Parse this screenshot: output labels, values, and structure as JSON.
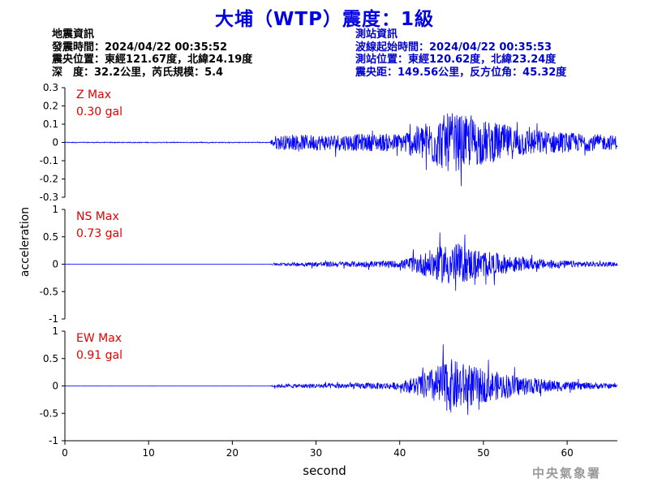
{
  "title": "大埔（WTP）震度：1級",
  "quake_info": {
    "heading": "地震資訊",
    "time": "發震時間：2024/04/22 00:35:52",
    "epicenter": "震央位置：東經121.67度，北緯24.19度",
    "depth_mag": "深　度：32.2公里，芮氏規模：5.4"
  },
  "station_info": {
    "heading": "測站資訊",
    "arrival": "波線起始時間：2024/04/22 00:35:53",
    "location": "測站位置：東經120.62度，北緯23.24度",
    "distance": "震央距：149.56公里，反方位角：45.32度"
  },
  "credit": "中央氣象署",
  "colors": {
    "title": "#0000e0",
    "trace": "#0000ff",
    "max_label": "#e00000",
    "station_text": "#0000cc"
  },
  "chart_data": {
    "type": "line",
    "xlabel": "second",
    "ylabel": "acceleration",
    "xlim": [
      0,
      66
    ],
    "x_ticks": [
      "0",
      "10",
      "20",
      "30",
      "40",
      "50",
      "60"
    ],
    "panels": [
      {
        "component": "Z",
        "max_label": "Z Max",
        "max_value": "0.30 gal",
        "ylim": [
          -0.3,
          0.3
        ],
        "y_ticks": [
          "0.3",
          "0.2",
          "0.1",
          "0",
          "-0.1",
          "-0.2",
          "-0.3"
        ],
        "onset_s": 24.0,
        "envelope": [
          [
            0,
            0.004
          ],
          [
            24.5,
            0.004
          ],
          [
            25,
            0.07
          ],
          [
            30,
            0.08
          ],
          [
            40,
            0.09
          ],
          [
            43,
            0.2
          ],
          [
            46,
            0.3
          ],
          [
            50,
            0.22
          ],
          [
            55,
            0.14
          ],
          [
            60,
            0.1
          ],
          [
            66,
            0.07
          ]
        ]
      },
      {
        "component": "NS",
        "max_label": "NS Max",
        "max_value": "0.73 gal",
        "ylim": [
          -1,
          1
        ],
        "y_ticks": [
          "1",
          "0.5",
          "0",
          "-0.5",
          "-1"
        ],
        "onset_s": 24.0,
        "envelope": [
          [
            0,
            0.004
          ],
          [
            24.5,
            0.004
          ],
          [
            25,
            0.04
          ],
          [
            30,
            0.08
          ],
          [
            40,
            0.12
          ],
          [
            43,
            0.4
          ],
          [
            46,
            0.73
          ],
          [
            50,
            0.45
          ],
          [
            55,
            0.2
          ],
          [
            60,
            0.12
          ],
          [
            66,
            0.06
          ]
        ]
      },
      {
        "component": "EW",
        "max_label": "EW Max",
        "max_value": "0.91 gal",
        "ylim": [
          -1,
          1
        ],
        "y_ticks": [
          "1",
          "0.5",
          "0",
          "-0.5",
          "-1"
        ],
        "onset_s": 24.0,
        "envelope": [
          [
            0,
            0.004
          ],
          [
            24.5,
            0.004
          ],
          [
            25,
            0.05
          ],
          [
            30,
            0.08
          ],
          [
            40,
            0.12
          ],
          [
            43,
            0.45
          ],
          [
            46,
            0.91
          ],
          [
            50,
            0.55
          ],
          [
            55,
            0.3
          ],
          [
            60,
            0.15
          ],
          [
            66,
            0.07
          ]
        ]
      }
    ]
  }
}
